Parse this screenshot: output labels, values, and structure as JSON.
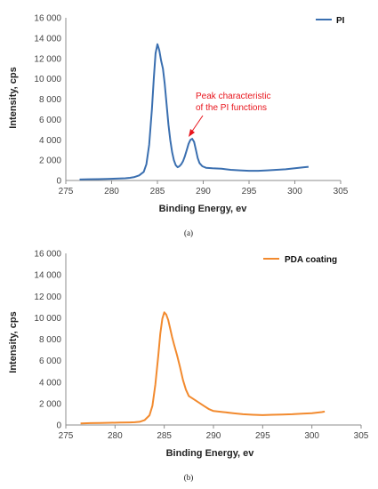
{
  "chart_data": [
    {
      "type": "line",
      "panel": "a",
      "caption": "(a)",
      "xlabel": "Binding Energy, ev",
      "ylabel": "Intensity, cps",
      "xlim": [
        275,
        305
      ],
      "ylim": [
        0,
        16000
      ],
      "xticks": [
        "275",
        "280",
        "285",
        "290",
        "295",
        "300",
        "305"
      ],
      "yticks": [
        "0",
        "2 000",
        "4 000",
        "6 000",
        "8 000",
        "10 000",
        "12 000",
        "14 000",
        "16 000"
      ],
      "grid": false,
      "legend": "top-right",
      "annotation": {
        "line1": "Peak characteristic",
        "line2": "of the PI functions",
        "x": 288.8,
        "y": 4100
      },
      "color": "#3a6fb0",
      "series": [
        {
          "name": "PI",
          "x": [
            276.5,
            277.5,
            278.5,
            279.5,
            280.5,
            281.5,
            282.0,
            282.5,
            283.0,
            283.5,
            283.8,
            284.1,
            284.4,
            284.6,
            284.8,
            285.0,
            285.2,
            285.4,
            285.6,
            285.8,
            286.0,
            286.2,
            286.4,
            286.6,
            286.8,
            287.0,
            287.2,
            287.4,
            287.6,
            287.8,
            288.0,
            288.2,
            288.4,
            288.6,
            288.8,
            289.0,
            289.2,
            289.4,
            289.6,
            289.9,
            290.3,
            291.0,
            292.0,
            293.0,
            294.0,
            295.0,
            296.0,
            297.0,
            298.0,
            299.0,
            300.0,
            301.0,
            301.5
          ],
          "y": [
            100,
            120,
            130,
            150,
            180,
            220,
            260,
            340,
            500,
            850,
            1600,
            3500,
            7000,
            10000,
            12500,
            13400,
            12800,
            11800,
            11000,
            9500,
            7500,
            5500,
            4000,
            2800,
            2000,
            1500,
            1300,
            1400,
            1600,
            1900,
            2400,
            3000,
            3600,
            4000,
            4100,
            3800,
            3000,
            2200,
            1700,
            1400,
            1250,
            1200,
            1150,
            1050,
            1000,
            950,
            950,
            1000,
            1050,
            1100,
            1200,
            1300,
            1350
          ]
        }
      ]
    },
    {
      "type": "line",
      "panel": "b",
      "caption": "(b)",
      "xlabel": "Binding Energy, ev",
      "ylabel": "Intensity, cps",
      "xlim": [
        275,
        305
      ],
      "ylim": [
        0,
        16000
      ],
      "xticks": [
        "275",
        "280",
        "285",
        "290",
        "295",
        "300",
        "305"
      ],
      "yticks": [
        "0",
        "2 000",
        "4 000",
        "6 000",
        "8 000",
        "10 000",
        "12 000",
        "14 000",
        "16 000"
      ],
      "grid": false,
      "legend": "top-right",
      "color": "#f28a2e",
      "series": [
        {
          "name": "PDA coating",
          "x": [
            276.5,
            277.5,
            278.5,
            279.5,
            280.5,
            281.5,
            282.0,
            282.5,
            283.0,
            283.5,
            283.8,
            284.1,
            284.4,
            284.6,
            284.8,
            285.0,
            285.2,
            285.4,
            285.6,
            285.8,
            286.0,
            286.3,
            286.6,
            286.9,
            287.2,
            287.5,
            288.0,
            288.5,
            289.0,
            289.5,
            290.0,
            290.5,
            291.0,
            292.0,
            293.0,
            294.0,
            295.0,
            296.0,
            297.0,
            298.0,
            299.0,
            300.0,
            301.0,
            301.3
          ],
          "y": [
            150,
            170,
            190,
            210,
            220,
            240,
            260,
            300,
            450,
            900,
            1800,
            3800,
            6500,
            8500,
            9900,
            10500,
            10300,
            9800,
            9000,
            8200,
            7500,
            6500,
            5400,
            4200,
            3300,
            2700,
            2400,
            2100,
            1800,
            1500,
            1300,
            1250,
            1200,
            1100,
            1000,
            950,
            920,
            950,
            980,
            1000,
            1050,
            1100,
            1200,
            1250
          ]
        }
      ]
    }
  ]
}
